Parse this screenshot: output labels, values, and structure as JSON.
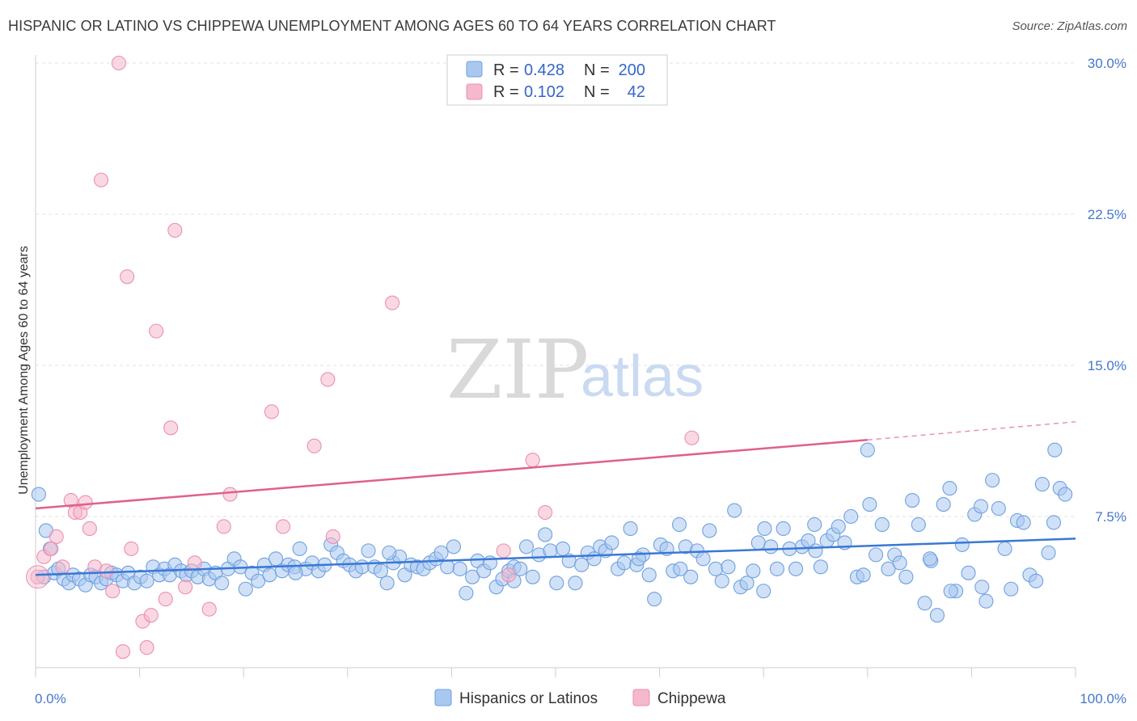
{
  "header": {
    "title": "HISPANIC OR LATINO VS CHIPPEWA UNEMPLOYMENT AMONG AGES 60 TO 64 YEARS CORRELATION CHART",
    "source": "Source: ZipAtlas.com"
  },
  "watermark": {
    "zip": "ZIP",
    "atlas": "atlas"
  },
  "legend_top": {
    "rows": [
      {
        "r_label": "R =",
        "r_value": "0.428",
        "n_label": "N =",
        "n_value": "200",
        "color": "#a9c8f0"
      },
      {
        "r_label": "R =",
        "r_value": "0.102",
        "n_label": "N =",
        "n_value": "42",
        "color": "#f5b8cc"
      }
    ]
  },
  "legend_bottom": {
    "items": [
      {
        "label": "Hispanics or Latinos",
        "color": "#a9c8f0"
      },
      {
        "label": "Chippewa",
        "color": "#f5b8cc"
      }
    ]
  },
  "chart_data": {
    "type": "scatter",
    "title": "HISPANIC OR LATINO VS CHIPPEWA UNEMPLOYMENT AMONG AGES 60 TO 64 YEARS CORRELATION CHART",
    "xlabel": "",
    "ylabel": "Unemployment Among Ages 60 to 64 years",
    "xlim": [
      0,
      100
    ],
    "ylim": [
      0,
      30
    ],
    "x_tick_labels": [
      "0.0%",
      "100.0%"
    ],
    "y_ticks": [
      7.5,
      15.0,
      22.5,
      30.0
    ],
    "y_tick_labels": [
      "7.5%",
      "15.0%",
      "22.5%",
      "30.0%"
    ],
    "grid": true,
    "legend_placement": "top-center",
    "series": [
      {
        "name": "Hispanics or Latinos",
        "color": "#6fa0e0",
        "trend": {
          "x": [
            0,
            100
          ],
          "y": [
            4.6,
            6.4
          ]
        },
        "points": [
          [
            0.3,
            8.6
          ],
          [
            0.8,
            4.5
          ],
          [
            1.0,
            6.8
          ],
          [
            1.4,
            5.9
          ],
          [
            1.8,
            4.7
          ],
          [
            2.2,
            4.9
          ],
          [
            2.7,
            4.4
          ],
          [
            3.2,
            4.2
          ],
          [
            3.6,
            4.6
          ],
          [
            4.2,
            4.4
          ],
          [
            4.8,
            4.1
          ],
          [
            5.3,
            4.6
          ],
          [
            5.8,
            4.5
          ],
          [
            6.3,
            4.2
          ],
          [
            6.8,
            4.4
          ],
          [
            7.3,
            4.7
          ],
          [
            7.8,
            4.6
          ],
          [
            8.4,
            4.3
          ],
          [
            8.9,
            4.7
          ],
          [
            9.5,
            4.2
          ],
          [
            10.1,
            4.5
          ],
          [
            10.7,
            4.3
          ],
          [
            11.3,
            5.0
          ],
          [
            11.9,
            4.6
          ],
          [
            12.4,
            4.9
          ],
          [
            12.9,
            4.6
          ],
          [
            13.4,
            5.1
          ],
          [
            14.0,
            4.8
          ],
          [
            14.5,
            4.6
          ],
          [
            15.0,
            4.8
          ],
          [
            15.6,
            4.5
          ],
          [
            16.2,
            4.9
          ],
          [
            16.7,
            4.4
          ],
          [
            17.3,
            4.7
          ],
          [
            17.9,
            4.2
          ],
          [
            18.5,
            4.9
          ],
          [
            19.1,
            5.4
          ],
          [
            19.7,
            5.0
          ],
          [
            20.2,
            3.9
          ],
          [
            20.8,
            4.7
          ],
          [
            21.4,
            4.3
          ],
          [
            22.0,
            5.1
          ],
          [
            22.5,
            4.6
          ],
          [
            23.1,
            5.4
          ],
          [
            23.7,
            4.8
          ],
          [
            24.3,
            5.1
          ],
          [
            24.9,
            5.0
          ],
          [
            25.4,
            5.9
          ],
          [
            26.0,
            4.9
          ],
          [
            26.6,
            5.2
          ],
          [
            27.2,
            4.8
          ],
          [
            27.8,
            5.1
          ],
          [
            28.4,
            6.1
          ],
          [
            29.0,
            5.7
          ],
          [
            29.6,
            5.3
          ],
          [
            30.2,
            5.1
          ],
          [
            30.8,
            4.8
          ],
          [
            31.4,
            5.0
          ],
          [
            32.0,
            5.8
          ],
          [
            32.6,
            5.0
          ],
          [
            33.2,
            4.8
          ],
          [
            33.8,
            4.2
          ],
          [
            34.4,
            5.2
          ],
          [
            35.0,
            5.5
          ],
          [
            35.5,
            4.6
          ],
          [
            36.1,
            5.1
          ],
          [
            36.7,
            5.0
          ],
          [
            37.3,
            4.9
          ],
          [
            37.9,
            5.2
          ],
          [
            38.5,
            5.4
          ],
          [
            39.0,
            5.7
          ],
          [
            39.6,
            5.0
          ],
          [
            40.2,
            6.0
          ],
          [
            40.8,
            4.9
          ],
          [
            41.4,
            3.7
          ],
          [
            42.0,
            4.5
          ],
          [
            42.5,
            5.3
          ],
          [
            43.1,
            4.8
          ],
          [
            43.7,
            5.2
          ],
          [
            44.3,
            4.0
          ],
          [
            44.9,
            4.4
          ],
          [
            45.5,
            4.8
          ],
          [
            46.0,
            5.0
          ],
          [
            46.6,
            4.9
          ],
          [
            47.2,
            6.0
          ],
          [
            47.8,
            4.5
          ],
          [
            48.4,
            5.6
          ],
          [
            49.0,
            6.6
          ],
          [
            49.5,
            5.8
          ],
          [
            50.1,
            4.2
          ],
          [
            50.7,
            5.9
          ],
          [
            51.3,
            5.3
          ],
          [
            51.9,
            4.2
          ],
          [
            52.5,
            5.1
          ],
          [
            53.1,
            5.7
          ],
          [
            53.7,
            5.4
          ],
          [
            54.3,
            6.0
          ],
          [
            54.8,
            5.8
          ],
          [
            55.4,
            6.2
          ],
          [
            56.0,
            4.9
          ],
          [
            56.6,
            5.2
          ],
          [
            57.2,
            6.9
          ],
          [
            57.8,
            5.1
          ],
          [
            58.4,
            5.6
          ],
          [
            59.0,
            4.6
          ],
          [
            59.5,
            3.4
          ],
          [
            60.1,
            6.1
          ],
          [
            60.7,
            5.9
          ],
          [
            61.3,
            4.8
          ],
          [
            61.9,
            7.1
          ],
          [
            62.5,
            6.0
          ],
          [
            63.0,
            4.5
          ],
          [
            63.6,
            5.8
          ],
          [
            64.2,
            5.4
          ],
          [
            64.8,
            6.8
          ],
          [
            65.4,
            4.9
          ],
          [
            66.0,
            4.3
          ],
          [
            66.6,
            5.0
          ],
          [
            67.2,
            7.8
          ],
          [
            67.8,
            4.0
          ],
          [
            68.4,
            4.2
          ],
          [
            69.0,
            4.8
          ],
          [
            69.5,
            6.2
          ],
          [
            70.1,
            6.9
          ],
          [
            70.7,
            6.0
          ],
          [
            71.3,
            4.9
          ],
          [
            71.9,
            6.9
          ],
          [
            72.5,
            5.9
          ],
          [
            73.1,
            4.9
          ],
          [
            73.7,
            6.0
          ],
          [
            74.3,
            6.3
          ],
          [
            74.9,
            7.1
          ],
          [
            75.5,
            5.0
          ],
          [
            76.1,
            6.3
          ],
          [
            76.7,
            6.6
          ],
          [
            77.2,
            7.0
          ],
          [
            77.8,
            6.2
          ],
          [
            78.4,
            7.5
          ],
          [
            79.0,
            4.5
          ],
          [
            79.6,
            4.6
          ],
          [
            80.2,
            8.1
          ],
          [
            80.8,
            5.6
          ],
          [
            81.4,
            7.1
          ],
          [
            82.0,
            4.9
          ],
          [
            82.6,
            5.6
          ],
          [
            83.1,
            5.2
          ],
          [
            83.7,
            4.5
          ],
          [
            84.3,
            8.3
          ],
          [
            84.9,
            7.1
          ],
          [
            85.5,
            3.2
          ],
          [
            86.1,
            5.3
          ],
          [
            86.7,
            2.6
          ],
          [
            87.3,
            8.1
          ],
          [
            87.9,
            8.9
          ],
          [
            88.5,
            3.8
          ],
          [
            89.1,
            6.1
          ],
          [
            89.7,
            4.7
          ],
          [
            90.3,
            7.6
          ],
          [
            90.9,
            8.0
          ],
          [
            91.4,
            3.3
          ],
          [
            92.0,
            9.3
          ],
          [
            92.6,
            7.9
          ],
          [
            93.2,
            5.9
          ],
          [
            93.8,
            3.9
          ],
          [
            94.4,
            7.3
          ],
          [
            95.0,
            7.2
          ],
          [
            95.6,
            4.6
          ],
          [
            96.2,
            4.3
          ],
          [
            96.8,
            9.1
          ],
          [
            97.4,
            5.7
          ],
          [
            97.9,
            7.2
          ],
          [
            98.5,
            8.9
          ],
          [
            99.0,
            8.6
          ],
          [
            80.0,
            10.8
          ],
          [
            98.0,
            10.8
          ],
          [
            86.0,
            5.4
          ],
          [
            91.0,
            4.0
          ],
          [
            70.0,
            3.8
          ],
          [
            88.0,
            3.8
          ],
          [
            25.0,
            4.7
          ],
          [
            34.0,
            5.7
          ],
          [
            46.0,
            4.3
          ],
          [
            58.0,
            5.4
          ],
          [
            62.0,
            4.9
          ],
          [
            75.0,
            5.8
          ]
        ]
      },
      {
        "name": "Chippewa",
        "color": "#f08cae",
        "trend": {
          "x": [
            0,
            80
          ],
          "y": [
            7.9,
            11.3
          ],
          "dash_x": [
            80,
            100
          ],
          "dash_y": [
            11.3,
            12.2
          ]
        },
        "points": [
          [
            0.2,
            4.5
          ],
          [
            0.8,
            5.5
          ],
          [
            1.5,
            5.9
          ],
          [
            2.0,
            6.5
          ],
          [
            2.6,
            5.0
          ],
          [
            3.4,
            8.3
          ],
          [
            3.8,
            7.7
          ],
          [
            4.3,
            7.7
          ],
          [
            4.8,
            8.2
          ],
          [
            5.2,
            6.9
          ],
          [
            5.7,
            5.0
          ],
          [
            6.3,
            24.2
          ],
          [
            6.8,
            4.8
          ],
          [
            7.4,
            3.8
          ],
          [
            8.0,
            30.0
          ],
          [
            8.4,
            0.8
          ],
          [
            8.8,
            19.4
          ],
          [
            9.2,
            5.9
          ],
          [
            10.3,
            2.3
          ],
          [
            10.7,
            1.0
          ],
          [
            11.1,
            2.6
          ],
          [
            11.6,
            16.7
          ],
          [
            12.5,
            3.4
          ],
          [
            13.0,
            11.9
          ],
          [
            13.4,
            21.7
          ],
          [
            14.4,
            4.0
          ],
          [
            15.3,
            5.2
          ],
          [
            16.7,
            2.9
          ],
          [
            18.1,
            7.0
          ],
          [
            18.7,
            8.6
          ],
          [
            22.7,
            12.7
          ],
          [
            23.8,
            7.0
          ],
          [
            26.8,
            11.0
          ],
          [
            28.1,
            14.3
          ],
          [
            28.6,
            6.5
          ],
          [
            34.3,
            18.1
          ],
          [
            45.0,
            5.8
          ],
          [
            45.5,
            4.6
          ],
          [
            47.8,
            10.3
          ],
          [
            49.0,
            7.7
          ],
          [
            63.1,
            11.4
          ]
        ]
      }
    ]
  }
}
